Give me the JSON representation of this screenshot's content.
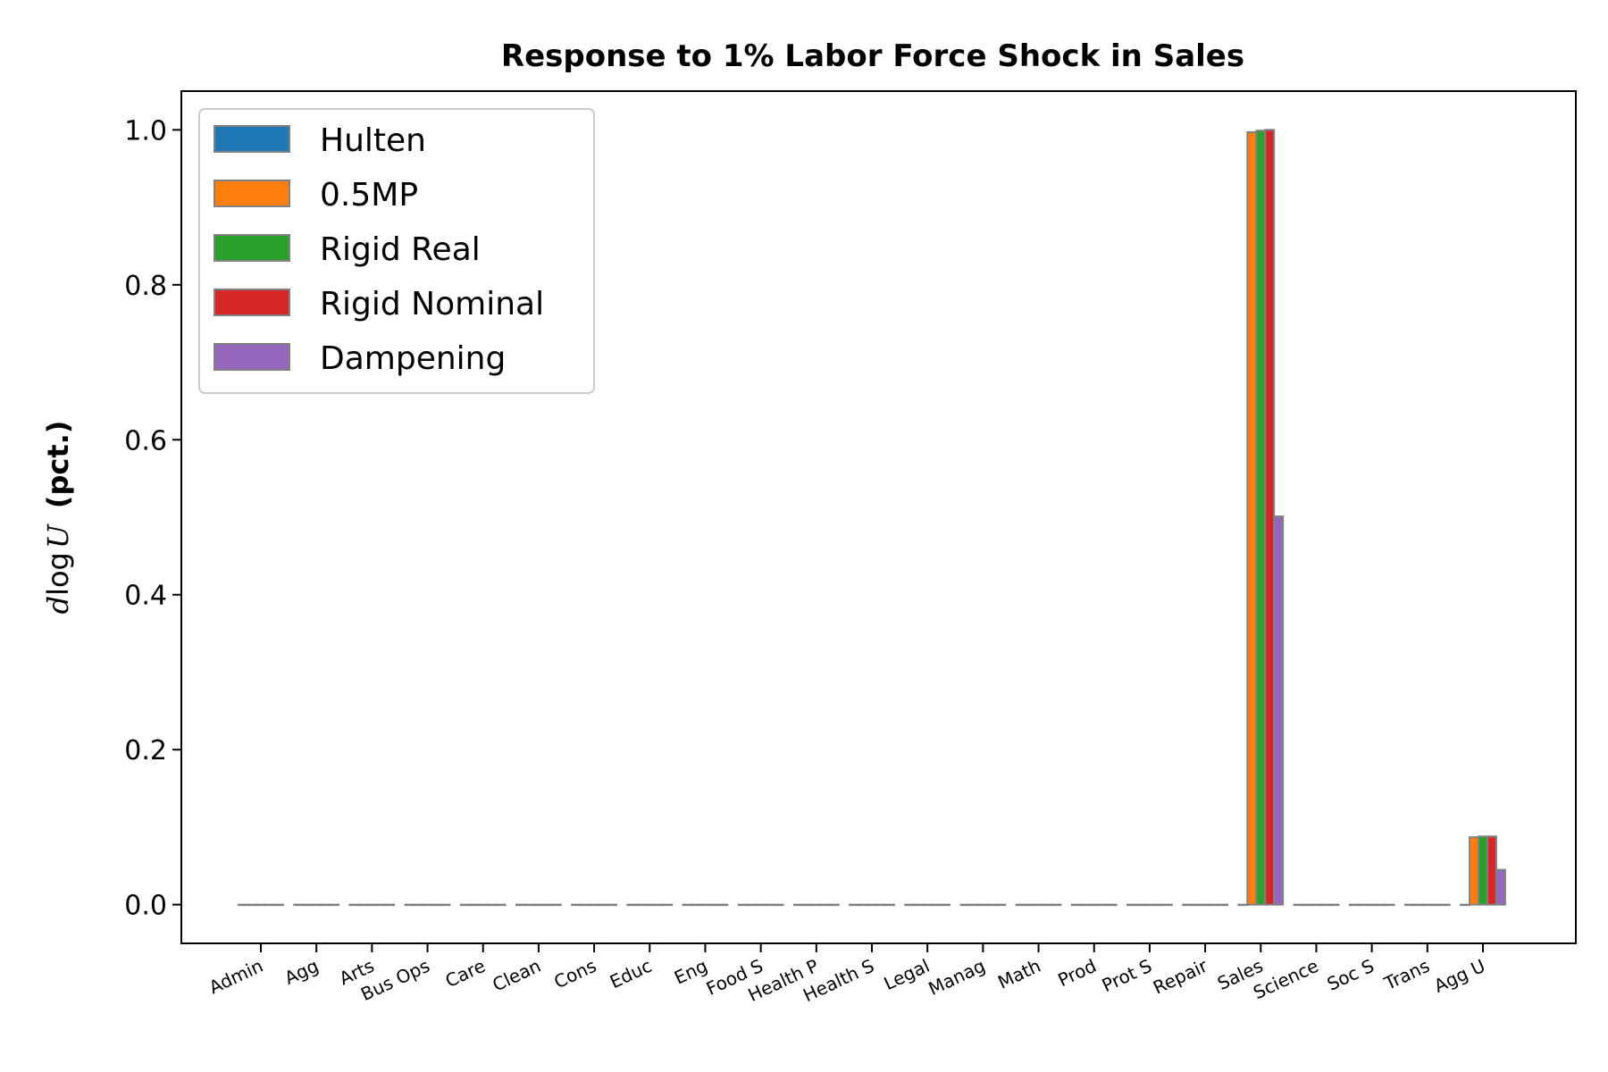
{
  "chart_data": {
    "type": "bar",
    "title": "Response to 1% Labor Force Shock in Sales",
    "ylabel_math": "d",
    "ylabel_log": "log",
    "ylabel_var": "U",
    "ylabel_unit": "(pct.)",
    "xlabel": "",
    "ylim": [
      -0.05,
      1.05
    ],
    "yticks": [
      "0.0",
      "0.2",
      "0.4",
      "0.6",
      "0.8",
      "1.0"
    ],
    "grid": false,
    "legend_position": "upper-left",
    "categories": [
      "Admin",
      "Agg",
      "Arts",
      "Bus Ops",
      "Care",
      "Clean",
      "Cons",
      "Educ",
      "Eng",
      "Food S",
      "Health P",
      "Health S",
      "Legal",
      "Manag",
      "Math",
      "Prod",
      "Prot S",
      "Repair",
      "Sales",
      "Science",
      "Soc S",
      "Trans",
      "Agg U"
    ],
    "series": [
      {
        "name": "Hulten",
        "color": "#1f77b4",
        "values": [
          0,
          0,
          0,
          0,
          0,
          0,
          0,
          0,
          0,
          0,
          0,
          0,
          0,
          0,
          0,
          0,
          0,
          0,
          0,
          0,
          0,
          0,
          0
        ]
      },
      {
        "name": "0.5MP",
        "color": "#ff7f0e",
        "values": [
          0,
          0,
          0,
          0,
          0,
          0,
          0,
          0,
          0,
          0,
          0,
          0,
          0,
          0,
          0,
          0,
          0,
          0,
          0.997,
          0,
          0,
          0,
          0.087
        ]
      },
      {
        "name": "Rigid Real",
        "color": "#2ca02c",
        "values": [
          0,
          0,
          0,
          0,
          0,
          0,
          0,
          0,
          0,
          0,
          0,
          0,
          0,
          0,
          0,
          0,
          0,
          0,
          0.999,
          0,
          0,
          0,
          0.088
        ]
      },
      {
        "name": "Rigid Nominal",
        "color": "#d62728",
        "values": [
          0,
          0,
          0,
          0,
          0,
          0,
          0,
          0,
          0,
          0,
          0,
          0,
          0,
          0,
          0,
          0,
          0,
          0,
          1.0,
          0,
          0,
          0,
          0.088
        ]
      },
      {
        "name": "Dampening",
        "color": "#9467bd",
        "values": [
          0,
          0,
          0,
          0,
          0,
          0,
          0,
          0,
          0,
          0,
          0,
          0,
          0,
          0,
          0,
          0,
          0,
          0,
          0.501,
          0,
          0,
          0,
          0.045
        ]
      }
    ]
  }
}
